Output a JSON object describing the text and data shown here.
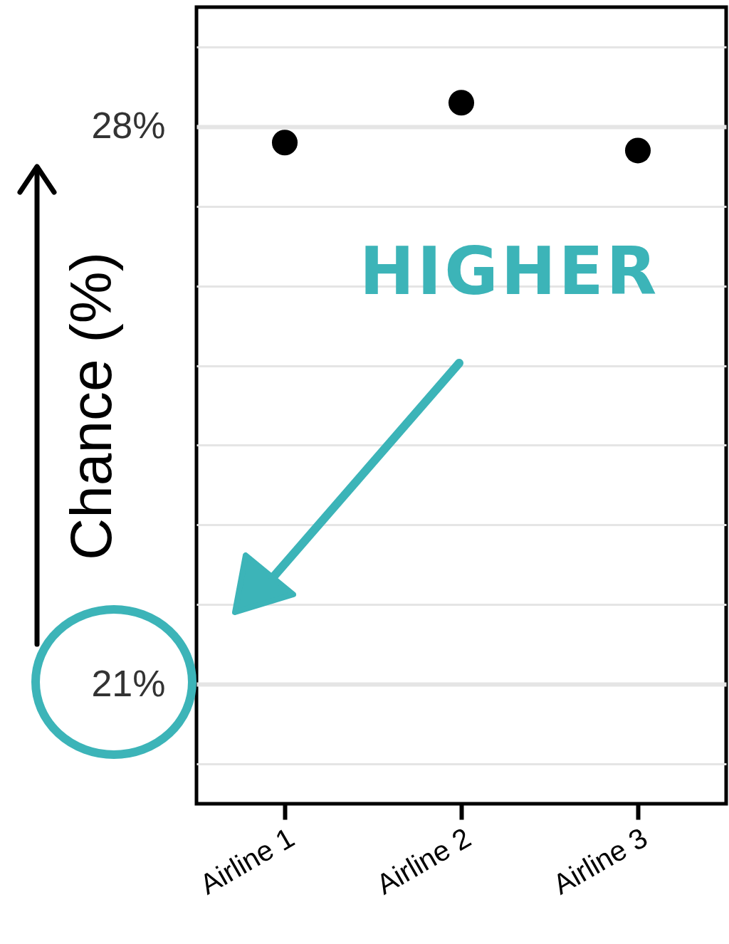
{
  "chart_data": {
    "type": "scatter",
    "ylabel": "Chance (%)",
    "categories": [
      "Airline 1",
      "Airline 2",
      "Airline 3"
    ],
    "series": [
      {
        "color": "#000000",
        "values": [
          27.8,
          28.3,
          27.7
        ]
      }
    ],
    "ylim": [
      19.5,
      29.5
    ],
    "yticks": [
      {
        "value": 20,
        "label": null
      },
      {
        "value": 21,
        "label": "21%"
      },
      {
        "value": 22,
        "label": null
      },
      {
        "value": 23,
        "label": null
      },
      {
        "value": 24,
        "label": null
      },
      {
        "value": 25,
        "label": null
      },
      {
        "value": 26,
        "label": null
      },
      {
        "value": 27,
        "label": null
      },
      {
        "value": 28,
        "label": "28%"
      },
      {
        "value": 29,
        "label": null
      }
    ],
    "grid": "y",
    "marker": "circle",
    "annotations": [
      "HIGHER"
    ]
  }
}
